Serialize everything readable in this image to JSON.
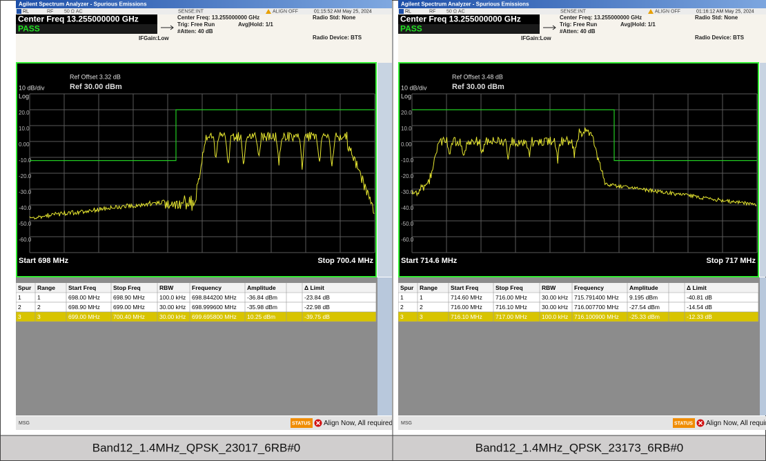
{
  "panels": [
    {
      "window_title": "Agilent Spectrum Analyzer - Spurious Emissions",
      "status": {
        "rl": "RL",
        "rf": "RF",
        "impedance": "50 Ω  AC",
        "sense": "SENSE:INT",
        "align": "ALIGN OFF",
        "timestamp": "01:15:52 AM May 25, 2024"
      },
      "center_freq": "Center Freq 13.255000000 GHz",
      "result": "PASS",
      "if_gain": "IFGain:Low",
      "settings": [
        "Center Freq: 13.255000000 GHz",
        "Trig: Free Run",
        "#Atten: 40 dB"
      ],
      "avg_hold": "Avg|Hold: 1/1",
      "radio_std": "Radio Std: None",
      "radio_device": "Radio Device: BTS",
      "ref_offset": "Ref Offset 3.32 dB",
      "scale": "10 dB/div",
      "ref_level": "Ref 30.00 dBm",
      "scale_type": "Log",
      "y_labels": [
        "20.0",
        "10.0",
        "0.00",
        "-10.0",
        "-20.0",
        "-30.0",
        "-40.0",
        "-50.0",
        "-60.0"
      ],
      "start": "Start  698 MHz",
      "stop": "Stop 700.4 MHz",
      "table": {
        "header": [
          "Spur",
          "Range",
          "Start Freq",
          "Stop Freq",
          "RBW",
          "Frequency",
          "Amplitude",
          "Δ Limit"
        ],
        "rows": [
          [
            "1",
            "1",
            "698.00 MHz",
            "698.90 MHz",
            "100.0 kHz",
            "698.844200 MHz",
            "-36.84 dBm",
            "-23.84 dB"
          ],
          [
            "2",
            "2",
            "698.90 MHz",
            "699.00 MHz",
            "30.00 kHz",
            "698.999600 MHz",
            "-35.98 dBm",
            "-22.98 dB"
          ],
          [
            "3",
            "3",
            "699.00 MHz",
            "700.40 MHz",
            "30.00 kHz",
            "699.695800 MHz",
            "10.25 dBm",
            "-39.75 dB"
          ]
        ]
      },
      "msg": "MSG",
      "status_label": "STATUS",
      "status_message": "Align Now, All required",
      "caption": "Band12_1.4MHz_QPSK_23017_6RB#0"
    },
    {
      "window_title": "Agilent Spectrum Analyzer - Spurious Emissions",
      "status": {
        "rl": "RL",
        "rf": "RF",
        "impedance": "50 Ω  AC",
        "sense": "SENSE:INT",
        "align": "ALIGN OFF",
        "timestamp": "01:16:12 AM May 25, 2024"
      },
      "center_freq": "Center Freq 13.255000000 GHz",
      "result": "PASS",
      "if_gain": "IFGain:Low",
      "settings": [
        "Center Freq: 13.255000000 GHz",
        "Trig: Free Run",
        "#Atten: 40 dB"
      ],
      "avg_hold": "Avg|Hold: 1/1",
      "radio_std": "Radio Std: None",
      "radio_device": "Radio Device: BTS",
      "ref_offset": "Ref Offset 3.48 dB",
      "scale": "10 dB/div",
      "ref_level": "Ref 30.00 dBm",
      "scale_type": "Log",
      "y_labels": [
        "20.0",
        "10.0",
        "0.00",
        "-10.0",
        "-20.0",
        "-30.0",
        "-40.0",
        "-50.0",
        "-60.0"
      ],
      "start": "Start  714.6 MHz",
      "stop": "Stop 717 MHz",
      "table": {
        "header": [
          "Spur",
          "Range",
          "Start Freq",
          "Stop Freq",
          "RBW",
          "Frequency",
          "Amplitude",
          "Δ Limit"
        ],
        "rows": [
          [
            "1",
            "1",
            "714.60 MHz",
            "716.00 MHz",
            "30.00 kHz",
            "715.791400 MHz",
            "9.195 dBm",
            "-40.81 dB"
          ],
          [
            "2",
            "2",
            "716.00 MHz",
            "716.10 MHz",
            "30.00 kHz",
            "716.007700 MHz",
            "-27.54 dBm",
            "-14.54 dB"
          ],
          [
            "3",
            "3",
            "716.10 MHz",
            "717.00 MHz",
            "100.0 kHz",
            "716.100900 MHz",
            "-25.33 dBm",
            "-12.33 dB"
          ]
        ]
      },
      "msg": "MSG",
      "status_label": "STATUS",
      "status_message": "Align Now, All required",
      "caption": "Band12_1.4MHz_QPSK_23173_6RB#0"
    }
  ]
}
